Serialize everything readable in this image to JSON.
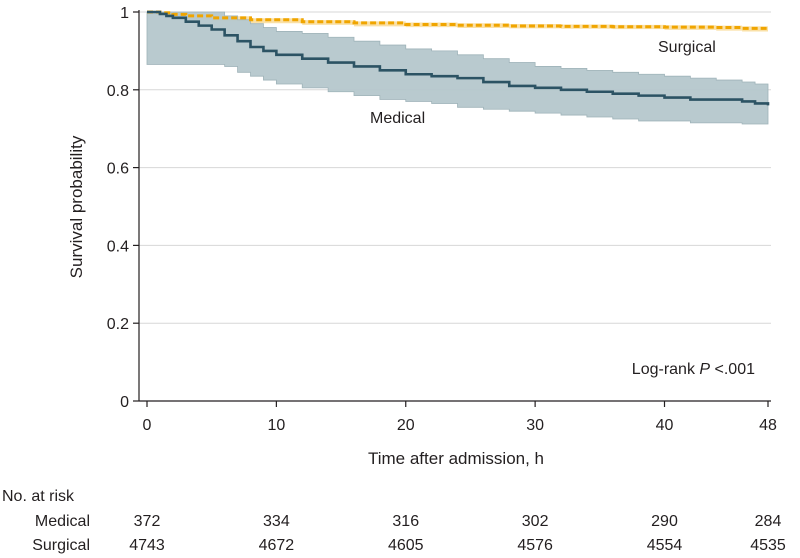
{
  "chart_data": {
    "type": "line",
    "subtype": "kaplan-meier",
    "title": "",
    "xlabel": "Time after admission, h",
    "ylabel": "Survival probability",
    "xlim": [
      0,
      48
    ],
    "ylim": [
      0,
      1
    ],
    "xticks": [
      0,
      10,
      20,
      30,
      40,
      48
    ],
    "yticks": [
      0,
      0.2,
      0.4,
      0.6,
      0.8,
      1
    ],
    "ytick_labels": [
      "0",
      "0.2",
      "0.4",
      "0.6",
      "0.8",
      "1"
    ],
    "grid": "horizontal",
    "series": [
      {
        "name": "Surgical",
        "label": "Surgical",
        "color": "#f0a500",
        "style": "dashed",
        "x": [
          0,
          1,
          2,
          3,
          5,
          8,
          12,
          16,
          20,
          24,
          28,
          32,
          36,
          40,
          44,
          46,
          48
        ],
        "y": [
          1.0,
          0.998,
          0.994,
          0.99,
          0.985,
          0.98,
          0.975,
          0.972,
          0.968,
          0.966,
          0.964,
          0.963,
          0.962,
          0.961,
          0.96,
          0.958,
          0.956
        ],
        "ci_lower": [
          1.0,
          0.997,
          0.992,
          0.987,
          0.982,
          0.976,
          0.971,
          0.967,
          0.963,
          0.961,
          0.959,
          0.958,
          0.957,
          0.956,
          0.954,
          0.952,
          0.95
        ],
        "ci_upper": [
          1.0,
          0.999,
          0.997,
          0.993,
          0.989,
          0.984,
          0.979,
          0.976,
          0.973,
          0.971,
          0.969,
          0.968,
          0.967,
          0.966,
          0.965,
          0.963,
          0.962
        ]
      },
      {
        "name": "Medical",
        "label": "Medical",
        "color": "#2c5364",
        "ci_color": "#b5c7cc",
        "style": "solid",
        "x": [
          0,
          1,
          1.5,
          2,
          3,
          4,
          5,
          6,
          7,
          8,
          9,
          10,
          12,
          14,
          16,
          18,
          20,
          22,
          24,
          26,
          28,
          30,
          32,
          34,
          36,
          38,
          40,
          42,
          44,
          46,
          47,
          48
        ],
        "y": [
          1.0,
          0.995,
          0.99,
          0.985,
          0.975,
          0.965,
          0.955,
          0.94,
          0.925,
          0.91,
          0.9,
          0.89,
          0.88,
          0.87,
          0.86,
          0.85,
          0.84,
          0.835,
          0.83,
          0.82,
          0.81,
          0.805,
          0.8,
          0.795,
          0.79,
          0.785,
          0.78,
          0.775,
          0.775,
          0.77,
          0.765,
          0.76
        ],
        "ci_lower": [
          0.865,
          0.865,
          0.865,
          0.865,
          0.865,
          0.865,
          0.865,
          0.865,
          0.86,
          0.845,
          0.835,
          0.825,
          0.815,
          0.805,
          0.795,
          0.785,
          0.775,
          0.77,
          0.765,
          0.755,
          0.75,
          0.745,
          0.74,
          0.735,
          0.73,
          0.725,
          0.72,
          0.72,
          0.715,
          0.715,
          0.712,
          0.712
        ],
        "ci_upper": [
          1.0,
          1.0,
          1.0,
          1.0,
          1.0,
          1.0,
          1.0,
          0.99,
          0.98,
          0.97,
          0.96,
          0.95,
          0.945,
          0.935,
          0.925,
          0.915,
          0.905,
          0.9,
          0.89,
          0.88,
          0.87,
          0.86,
          0.855,
          0.85,
          0.845,
          0.84,
          0.835,
          0.83,
          0.825,
          0.82,
          0.815,
          0.812
        ]
      }
    ],
    "annotations": {
      "surgical_label": "Surgical",
      "medical_label": "Medical",
      "logrank_prefix": "Log-rank ",
      "logrank_p": "P",
      "logrank_value": " <.001"
    },
    "risk_table": {
      "title": "No. at risk",
      "times": [
        0,
        10,
        20,
        30,
        40,
        48
      ],
      "rows": [
        {
          "label": "Medical",
          "values": [
            "372",
            "334",
            "316",
            "302",
            "290",
            "284"
          ]
        },
        {
          "label": "Surgical",
          "values": [
            "4743",
            "4672",
            "4605",
            "4576",
            "4554",
            "4535"
          ]
        }
      ]
    }
  }
}
